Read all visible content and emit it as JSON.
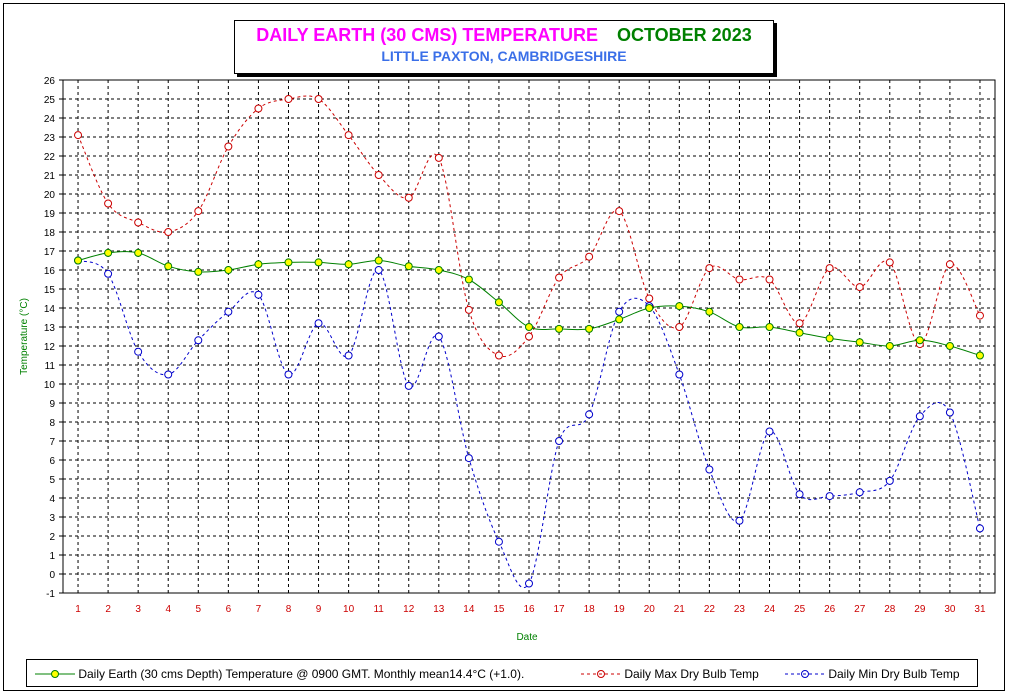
{
  "title": {
    "main": "DAILY EARTH (30 CMS) TEMPERATURE",
    "month": "OCTOBER 2023",
    "subtitle": "LITTLE PAXTON, CAMBRIDGESHIRE"
  },
  "colors": {
    "title_main": "#ff00ff",
    "title_month": "#008000",
    "subtitle": "#3a6fe8",
    "earth_line": "#008000",
    "earth_marker": "#ffff00",
    "max_line": "#cc0000",
    "min_line": "#0000cc",
    "axis_label": "#008000",
    "tick_label_x": "#cc0000"
  },
  "chart_data": {
    "type": "line",
    "title": "DAILY EARTH (30 CMS) TEMPERATURE  OCTOBER 2023",
    "subtitle": "LITTLE PAXTON, CAMBRIDGESHIRE",
    "xlabel": "Date",
    "ylabel": "Temperature (°C)",
    "ylim": [
      -1,
      26
    ],
    "yticks": [
      -1,
      0,
      1,
      2,
      3,
      4,
      5,
      6,
      7,
      8,
      9,
      10,
      11,
      12,
      13,
      14,
      15,
      16,
      17,
      18,
      19,
      20,
      21,
      22,
      23,
      24,
      25,
      26
    ],
    "grid": true,
    "legend_position": "bottom",
    "x": [
      1,
      2,
      3,
      4,
      5,
      6,
      7,
      8,
      9,
      10,
      11,
      12,
      13,
      14,
      15,
      16,
      17,
      18,
      19,
      20,
      21,
      22,
      23,
      24,
      25,
      26,
      27,
      28,
      29,
      30,
      31
    ],
    "series": [
      {
        "name": "Daily Earth (30 cms Depth) Temperature @ 0900 GMT. Monthly mean14.4°C (+1.0).",
        "style": "solid",
        "values": [
          16.5,
          16.9,
          16.9,
          16.2,
          15.9,
          16.0,
          16.3,
          16.4,
          16.4,
          16.3,
          16.5,
          16.2,
          16.0,
          15.5,
          14.3,
          13.0,
          12.9,
          12.9,
          13.4,
          14.0,
          14.1,
          13.8,
          13.0,
          13.0,
          12.7,
          12.4,
          12.2,
          12.0,
          12.3,
          12.0,
          11.5
        ]
      },
      {
        "name": "Daily Max Dry Bulb Temp",
        "style": "dashed",
        "values": [
          23.1,
          19.5,
          18.5,
          18.0,
          19.1,
          22.5,
          24.5,
          25.0,
          25.0,
          23.1,
          21.0,
          19.8,
          21.9,
          13.9,
          11.5,
          12.5,
          15.6,
          16.7,
          19.1,
          14.5,
          13.0,
          16.1,
          15.5,
          15.5,
          13.2,
          16.1,
          15.1,
          16.4,
          12.1,
          16.3,
          13.6
        ]
      },
      {
        "name": "Daily Min Dry Bulb Temp",
        "style": "dashed",
        "values": [
          16.5,
          15.8,
          11.7,
          10.5,
          12.3,
          13.8,
          14.7,
          10.5,
          13.2,
          11.5,
          16.0,
          9.9,
          12.5,
          6.1,
          1.7,
          -0.5,
          7.0,
          8.4,
          13.8,
          14.1,
          10.5,
          5.5,
          2.8,
          7.5,
          4.2,
          4.1,
          4.3,
          4.9,
          8.3,
          8.5,
          2.4
        ]
      }
    ]
  }
}
